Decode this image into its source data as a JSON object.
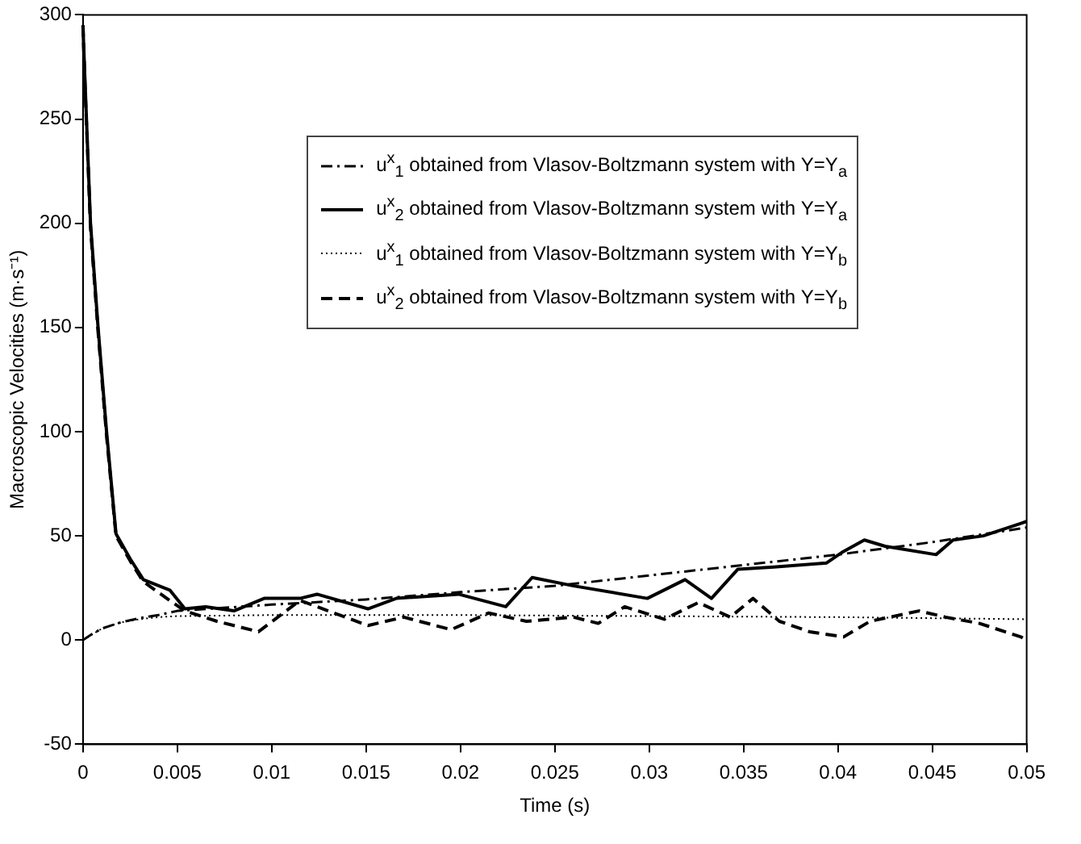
{
  "chart_data": {
    "type": "line",
    "xlabel": "Time (s)",
    "ylabel": "Macroscopic Velocities (m·s⁻¹)",
    "xlim": [
      0,
      0.05
    ],
    "xticks": [
      0,
      0.005,
      0.01,
      0.015,
      0.02,
      0.025,
      0.03,
      0.035,
      0.04,
      0.045,
      0.05
    ],
    "ylim": [
      -50,
      300
    ],
    "yticks": [
      -50,
      0,
      50,
      100,
      150,
      200,
      250,
      300
    ],
    "grid": false,
    "legend": "top right",
    "marker": "none",
    "series": [
      {
        "name": "u$^{x}$$_{1}$ obtained from Vlasov-Boltzmann system with  Υ=Υ$_{a}$",
        "color": "#000000",
        "line_style": "dashdot",
        "x": [
          0,
          0.0005,
          0.001,
          0.0015,
          0.002,
          0.003,
          0.004,
          0.005,
          0.01,
          0.015,
          0.02,
          0.025,
          0.03,
          0.035,
          0.04,
          0.045,
          0.05
        ],
        "values": [
          0,
          3,
          5.5,
          7,
          8.5,
          10.5,
          12,
          14,
          17,
          19.5,
          23,
          26,
          31,
          36,
          41,
          47,
          54
        ]
      },
      {
        "name": "u$^{x}$$_{2}$ obtained from Vlasov-Boltzmann system with  Υ=Υ$_{a}$",
        "color": "#000000",
        "line_style": "solid",
        "x": [
          0,
          0.0001,
          0.0004,
          0.0008,
          0.00125,
          0.00175,
          0.0025,
          0.0032,
          0.0046,
          0.0054,
          0.0065,
          0.008,
          0.0096,
          0.0115,
          0.0124,
          0.0151,
          0.0166,
          0.0199,
          0.0224,
          0.0238,
          0.026,
          0.0299,
          0.0319,
          0.0333,
          0.0347,
          0.0366,
          0.0394,
          0.0402,
          0.0414,
          0.0425,
          0.0452,
          0.0461,
          0.0477,
          0.0497,
          0.05
        ],
        "values": [
          295,
          270,
          200,
          150,
          100,
          51,
          39,
          29,
          24,
          15,
          16,
          14,
          20,
          20,
          22,
          15,
          20,
          22,
          16,
          30,
          26,
          20,
          29,
          20,
          34,
          35,
          37,
          42,
          48,
          45,
          41,
          48,
          50,
          56,
          57
        ]
      },
      {
        "name": "u$^{x}$$_{1}$ obtained from Vlasov-Boltzmann system with  Υ=Υ$_{b}$",
        "color": "#000000",
        "line_style": "dotted",
        "x": [
          0,
          0.001,
          0.002,
          0.003,
          0.004,
          0.005,
          0.01,
          0.02,
          0.03,
          0.04,
          0.05
        ],
        "values": [
          0,
          5.5,
          8.5,
          10,
          11,
          11.5,
          12,
          12,
          11.5,
          11,
          10
        ]
      },
      {
        "name": "u$^{x}$$_{2}$ obtained from Vlasov-Boltzmann system with  Υ=Υ$_{b}$",
        "color": "#000000",
        "line_style": "dashed",
        "x": [
          0,
          0.0001,
          0.0004,
          0.0008,
          0.00125,
          0.00175,
          0.0025,
          0.0032,
          0.0046,
          0.0054,
          0.0071,
          0.0093,
          0.0115,
          0.0151,
          0.017,
          0.0195,
          0.0215,
          0.0235,
          0.026,
          0.0273,
          0.0287,
          0.0308,
          0.0326,
          0.0343,
          0.0355,
          0.0369,
          0.0385,
          0.0403,
          0.0417,
          0.0443,
          0.0457,
          0.0475,
          0.0497,
          0.05
        ],
        "values": [
          295,
          268,
          198,
          148,
          98,
          50,
          38,
          28,
          19,
          14,
          9,
          4,
          19,
          7,
          11,
          5,
          13,
          9,
          11,
          8,
          16,
          10,
          18,
          11,
          20,
          9,
          4,
          1.5,
          9,
          14,
          11,
          8,
          1.5,
          0
        ]
      }
    ]
  }
}
